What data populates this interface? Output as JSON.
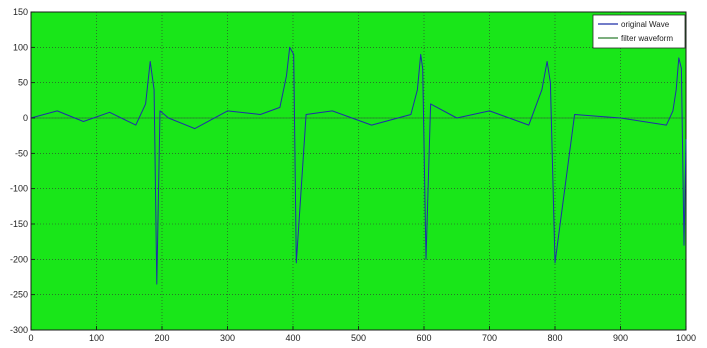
{
  "chart_data": {
    "type": "line",
    "title": "",
    "xlabel": "",
    "ylabel": "",
    "xlim": [
      0,
      1000
    ],
    "ylim": [
      -300,
      150
    ],
    "xticks": [
      0,
      100,
      200,
      300,
      400,
      500,
      600,
      700,
      800,
      900,
      1000
    ],
    "yticks": [
      150,
      100,
      50,
      0,
      -50,
      -100,
      -150,
      -200,
      -250,
      -300
    ],
    "grid": true,
    "legend_position": "top-right",
    "colors": {
      "plot_background": "#19e619",
      "grid": "#333333",
      "original": "#1f2fa8",
      "filter": "#2e7d32"
    },
    "series": [
      {
        "name": "original Wave",
        "x": [
          0,
          40,
          80,
          120,
          160,
          175,
          182,
          188,
          192,
          197,
          210,
          250,
          300,
          350,
          380,
          390,
          395,
          401,
          405,
          420,
          460,
          520,
          580,
          590,
          595,
          598,
          603,
          610,
          650,
          700,
          760,
          780,
          788,
          793,
          800,
          830,
          900,
          970,
          980,
          985,
          989,
          993,
          997,
          1000
        ],
        "y": [
          0,
          10,
          -5,
          8,
          -10,
          20,
          80,
          40,
          -235,
          10,
          0,
          -15,
          10,
          5,
          15,
          60,
          100,
          90,
          -205,
          5,
          10,
          -10,
          5,
          40,
          90,
          70,
          -200,
          20,
          0,
          10,
          -10,
          40,
          80,
          50,
          -205,
          5,
          0,
          -10,
          10,
          40,
          85,
          70,
          -180,
          -30
        ]
      },
      {
        "name": "filter waveform",
        "x": [
          0,
          200,
          400,
          600,
          800,
          1000
        ],
        "y": [
          0,
          0,
          0,
          0,
          0,
          0
        ]
      }
    ],
    "legend": [
      "original Wave",
      "filter waveform"
    ]
  }
}
